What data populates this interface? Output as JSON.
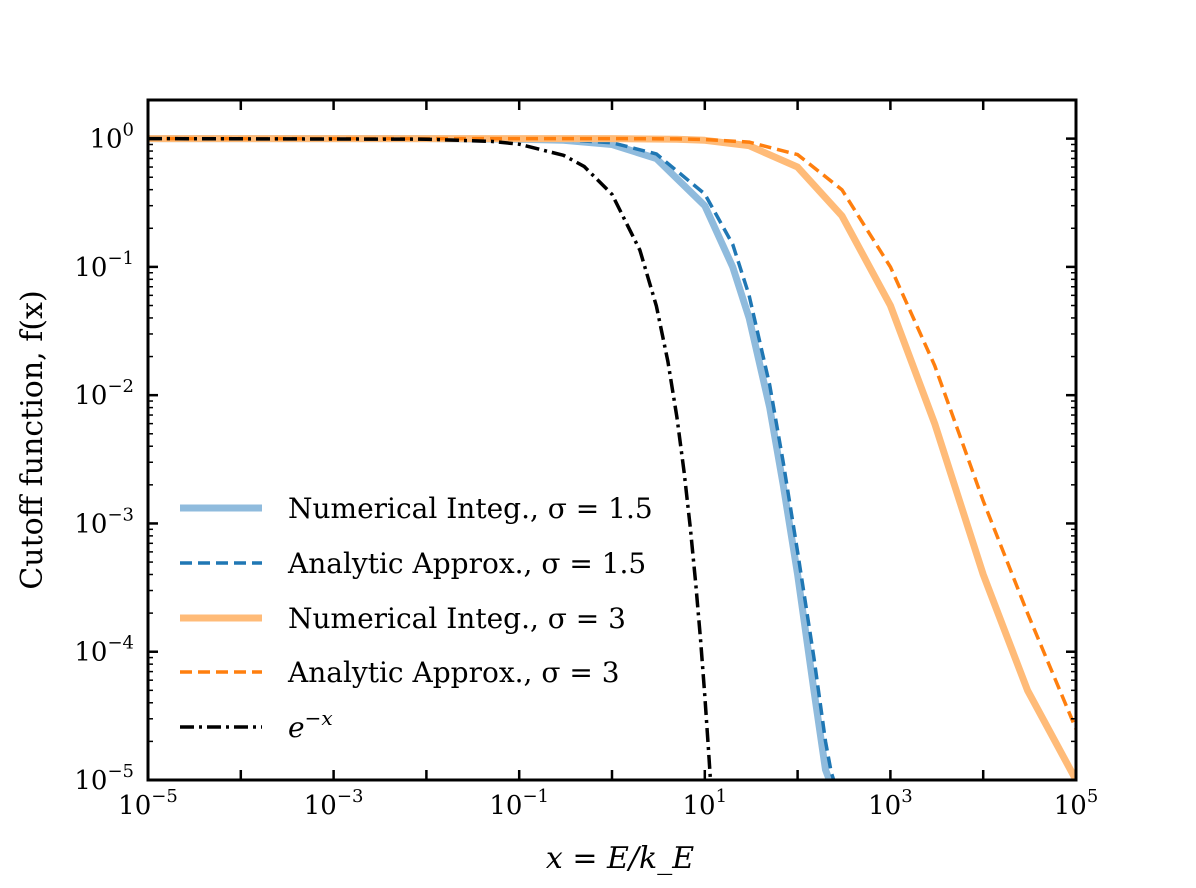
{
  "chart_data": {
    "type": "line",
    "title": "",
    "xlabel": "x = E/k_E",
    "ylabel": "Cutoff function, f(x)",
    "xscale": "log",
    "yscale": "log",
    "xlim": [
      1e-05,
      100000.0
    ],
    "ylim": [
      1e-05,
      2
    ],
    "x_ticks": [
      {
        "value": 1e-05,
        "label": "10",
        "exp": "−5"
      },
      {
        "value": 0.001,
        "label": "10",
        "exp": "−3"
      },
      {
        "value": 0.1,
        "label": "10",
        "exp": "−1"
      },
      {
        "value": 10.0,
        "label": "10",
        "exp": "1"
      },
      {
        "value": 1000.0,
        "label": "10",
        "exp": "3"
      },
      {
        "value": 100000.0,
        "label": "10",
        "exp": "5"
      }
    ],
    "y_ticks": [
      {
        "value": 1,
        "label": "10",
        "exp": "0"
      },
      {
        "value": 0.1,
        "label": "10",
        "exp": "−1"
      },
      {
        "value": 0.01,
        "label": "10",
        "exp": "−2"
      },
      {
        "value": 0.001,
        "label": "10",
        "exp": "−3"
      },
      {
        "value": 0.0001,
        "label": "10",
        "exp": "−4"
      },
      {
        "value": 1e-05,
        "label": "10",
        "exp": "−5"
      }
    ],
    "grid": false,
    "legend_position": "lower-left",
    "series": [
      {
        "name": "Numerical Integ., σ = 1.5",
        "color": "#8fbbdd",
        "style": "solid-thick",
        "x": [
          1e-05,
          0.001,
          0.01,
          0.1,
          0.3,
          1,
          3,
          10,
          20,
          30,
          50,
          70,
          100,
          150,
          200,
          220
        ],
        "y": [
          1,
          1,
          1,
          0.99,
          0.97,
          0.9,
          0.7,
          0.3,
          0.1,
          0.04,
          0.008,
          0.002,
          0.0004,
          5e-05,
          1.2e-05,
          1e-05
        ]
      },
      {
        "name": "Analytic Approx., σ = 1.5",
        "color": "#1f77b4",
        "style": "dashed",
        "x": [
          1e-05,
          0.001,
          0.01,
          0.1,
          0.3,
          1,
          3,
          10,
          20,
          30,
          50,
          70,
          100,
          150,
          200,
          230,
          245
        ],
        "y": [
          1,
          1,
          1,
          0.995,
          0.98,
          0.93,
          0.76,
          0.37,
          0.15,
          0.06,
          0.012,
          0.003,
          0.0006,
          9e-05,
          2e-05,
          1.15e-05,
          1e-05
        ]
      },
      {
        "name": "Numerical Integ., σ = 3",
        "color": "#ffbb78",
        "style": "solid-thick",
        "x": [
          1e-05,
          1,
          5,
          10,
          30,
          100,
          300,
          1000,
          3000,
          10000,
          30000,
          100000
        ],
        "y": [
          1,
          1,
          0.99,
          0.97,
          0.88,
          0.6,
          0.25,
          0.05,
          0.006,
          0.0004,
          5e-05,
          1e-05
        ]
      },
      {
        "name": "Analytic Approx., σ = 3",
        "color": "#ff7f0e",
        "style": "dashed",
        "x": [
          1e-05,
          1,
          5,
          10,
          30,
          100,
          300,
          1000,
          3000,
          10000,
          30000,
          100000
        ],
        "y": [
          1,
          1,
          0.995,
          0.985,
          0.94,
          0.75,
          0.4,
          0.1,
          0.017,
          0.0015,
          0.0002,
          2.5e-05
        ]
      },
      {
        "name": "e^{-x}",
        "color": "#000000",
        "style": "dashdot",
        "x": [
          1e-05,
          0.01,
          0.05,
          0.1,
          0.3,
          0.5,
          1,
          2,
          3,
          4,
          5,
          6,
          7,
          8,
          9,
          10,
          11,
          11.5
        ],
        "y": [
          0.99999,
          0.99,
          0.951,
          0.905,
          0.741,
          0.607,
          0.368,
          0.135,
          0.0498,
          0.0183,
          0.00674,
          0.00248,
          0.000912,
          0.000335,
          0.000123,
          4.54e-05,
          1.67e-05,
          1.01e-05
        ]
      }
    ]
  },
  "legend": {
    "items": [
      {
        "label": "Numerical Integ., σ = 1.5"
      },
      {
        "label": "Analytic Approx., σ = 1.5"
      },
      {
        "label": "Numerical Integ., σ = 3"
      },
      {
        "label": "Analytic Approx., σ = 3"
      },
      {
        "label": "e",
        "exp": "−x"
      }
    ]
  }
}
